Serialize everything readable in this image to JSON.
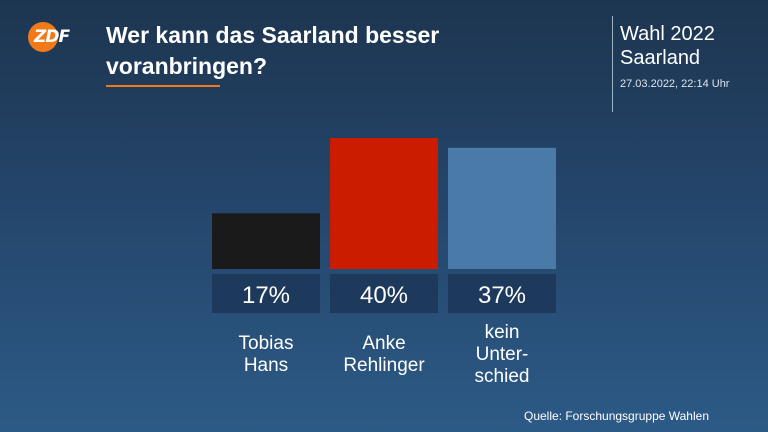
{
  "header": {
    "logo_text": "ZDF",
    "title": "Wer kann das Saarland besser voranbringen?",
    "info_title": "Wahl 2022 Saarland",
    "info_date": "27.03.2022, 22:14 Uhr",
    "source": "Quelle: Forschungsgruppe Wahlen"
  },
  "colors": {
    "accent": "#f07a1a",
    "label_box": "#1d3a5c"
  },
  "chart_data": {
    "type": "bar",
    "title": "Wer kann das Saarland besser voranbringen?",
    "categories": [
      "Tobias Hans",
      "Anke Rehlinger",
      "kein Unterschied"
    ],
    "category_label_lines": [
      [
        "Tobias",
        "Hans"
      ],
      [
        "Anke",
        "Rehlinger"
      ],
      [
        "kein",
        "Unter-",
        "schied"
      ]
    ],
    "values": [
      17,
      40,
      37
    ],
    "value_labels": [
      "17%",
      "40%",
      "37%"
    ],
    "colors": [
      "#1a1a1a",
      "#cc1c00",
      "#4a7aa8"
    ],
    "ylim": [
      0,
      40
    ],
    "grid": false,
    "xlabel": "",
    "ylabel": ""
  }
}
